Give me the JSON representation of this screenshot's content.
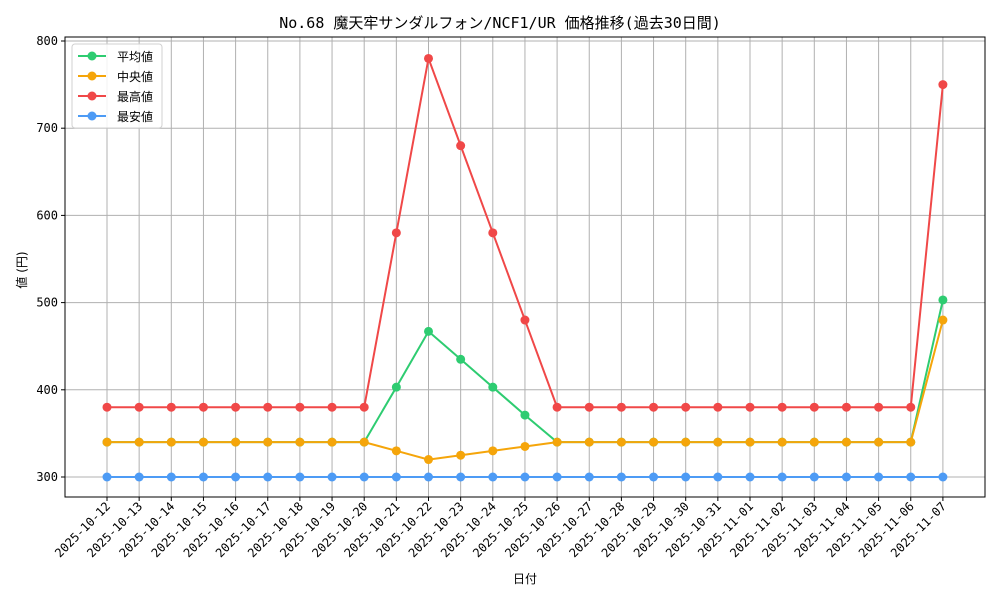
{
  "chart_data": {
    "type": "line",
    "title": "No.68 魔天牢サンダルフォン/NCF1/UR 価格推移(過去30日間)",
    "xlabel": "日付",
    "ylabel": "値 (円)",
    "ylim": [
      275,
      803
    ],
    "yticks": [
      300,
      400,
      500,
      600,
      700,
      800
    ],
    "grid": true,
    "legend_position": "upper left",
    "categories": [
      "2025-10-12",
      "2025-10-13",
      "2025-10-14",
      "2025-10-15",
      "2025-10-16",
      "2025-10-17",
      "2025-10-18",
      "2025-10-19",
      "2025-10-20",
      "2025-10-21",
      "2025-10-22",
      "2025-10-23",
      "2025-10-24",
      "2025-10-25",
      "2025-10-26",
      "2025-10-27",
      "2025-10-28",
      "2025-10-29",
      "2025-10-30",
      "2025-10-31",
      "2025-11-01",
      "2025-11-02",
      "2025-11-03",
      "2025-11-04",
      "2025-11-05",
      "2025-11-06",
      "2025-11-07"
    ],
    "series": [
      {
        "name": "平均値",
        "color": "#2ecc71",
        "values": [
          340,
          340,
          340,
          340,
          340,
          340,
          340,
          340,
          340,
          403,
          467,
          435,
          403,
          371,
          340,
          340,
          340,
          340,
          340,
          340,
          340,
          340,
          340,
          340,
          340,
          340,
          503
        ]
      },
      {
        "name": "中央値",
        "color": "#f5a50a",
        "values": [
          340,
          340,
          340,
          340,
          340,
          340,
          340,
          340,
          340,
          330,
          320,
          325,
          330,
          335,
          340,
          340,
          340,
          340,
          340,
          340,
          340,
          340,
          340,
          340,
          340,
          340,
          480
        ]
      },
      {
        "name": "最高値",
        "color": "#f04848",
        "values": [
          380,
          380,
          380,
          380,
          380,
          380,
          380,
          380,
          380,
          580,
          780,
          680,
          580,
          480,
          380,
          380,
          380,
          380,
          380,
          380,
          380,
          380,
          380,
          380,
          380,
          380,
          750
        ]
      },
      {
        "name": "最安値",
        "color": "#4d9bf5",
        "values": [
          300,
          300,
          300,
          300,
          300,
          300,
          300,
          300,
          300,
          300,
          300,
          300,
          300,
          300,
          300,
          300,
          300,
          300,
          300,
          300,
          300,
          300,
          300,
          300,
          300,
          300,
          300
        ]
      }
    ]
  }
}
